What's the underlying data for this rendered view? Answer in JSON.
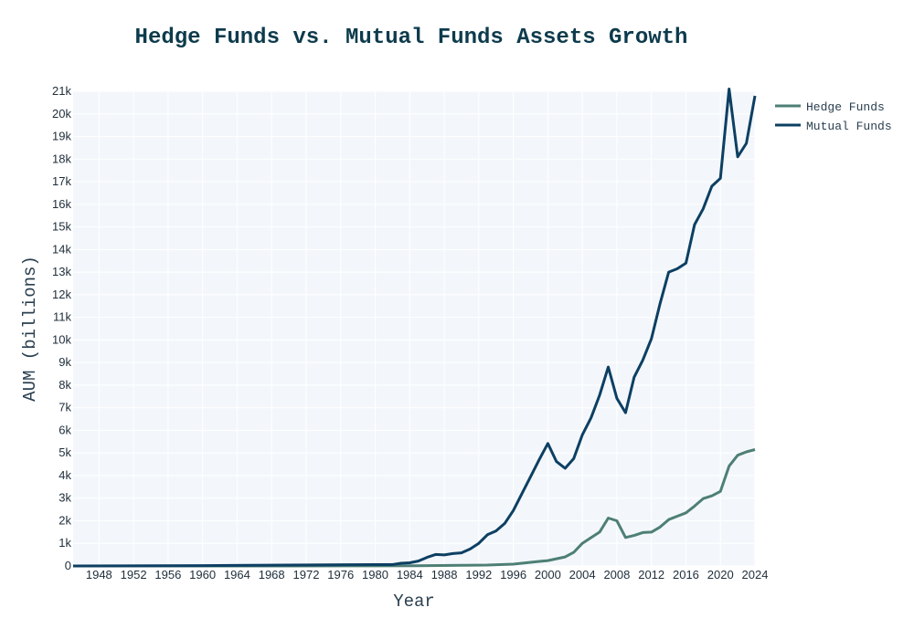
{
  "chart_data": {
    "type": "line",
    "title": "Hedge Funds vs. Mutual Funds Assets Growth",
    "xlabel": "Year",
    "ylabel": "AUM (billions)",
    "xlim": [
      1945,
      2024
    ],
    "ylim": [
      0,
      21000
    ],
    "grid": true,
    "legend_position": "top-right",
    "x_ticks": [
      1948,
      1952,
      1956,
      1960,
      1964,
      1968,
      1972,
      1976,
      1980,
      1984,
      1988,
      1992,
      1996,
      2000,
      2004,
      2008,
      2012,
      2016,
      2020,
      2024
    ],
    "y_ticks": [
      {
        "value": 0,
        "label": "0"
      },
      {
        "value": 1000,
        "label": "1k"
      },
      {
        "value": 2000,
        "label": "2k"
      },
      {
        "value": 3000,
        "label": "3k"
      },
      {
        "value": 4000,
        "label": "4k"
      },
      {
        "value": 5000,
        "label": "5k"
      },
      {
        "value": 6000,
        "label": "6k"
      },
      {
        "value": 7000,
        "label": "7k"
      },
      {
        "value": 8000,
        "label": "8k"
      },
      {
        "value": 9000,
        "label": "9k"
      },
      {
        "value": 10000,
        "label": "10k"
      },
      {
        "value": 11000,
        "label": "11k"
      },
      {
        "value": 12000,
        "label": "12k"
      },
      {
        "value": 13000,
        "label": "13k"
      },
      {
        "value": 14000,
        "label": "14k"
      },
      {
        "value": 15000,
        "label": "15k"
      },
      {
        "value": 16000,
        "label": "16k"
      },
      {
        "value": 17000,
        "label": "17k"
      },
      {
        "value": 18000,
        "label": "18k"
      },
      {
        "value": 19000,
        "label": "19k"
      },
      {
        "value": 20000,
        "label": "20k"
      },
      {
        "value": 21000,
        "label": "21k"
      }
    ],
    "series": [
      {
        "name": "Hedge Funds",
        "color": "#4e7f76",
        "points": [
          [
            1945,
            0
          ],
          [
            1970,
            1
          ],
          [
            1980,
            3
          ],
          [
            1985,
            10
          ],
          [
            1990,
            30
          ],
          [
            1993,
            40
          ],
          [
            1996,
            80
          ],
          [
            1997,
            120
          ],
          [
            1998,
            160
          ],
          [
            1999,
            200
          ],
          [
            2000,
            240
          ],
          [
            2001,
            320
          ],
          [
            2002,
            400
          ],
          [
            2003,
            600
          ],
          [
            2004,
            1000
          ],
          [
            2005,
            1250
          ],
          [
            2006,
            1500
          ],
          [
            2007,
            2120
          ],
          [
            2008,
            2000
          ],
          [
            2009,
            1260
          ],
          [
            2010,
            1350
          ],
          [
            2011,
            1480
          ],
          [
            2012,
            1500
          ],
          [
            2013,
            1720
          ],
          [
            2014,
            2050
          ],
          [
            2015,
            2200
          ],
          [
            2016,
            2350
          ],
          [
            2017,
            2650
          ],
          [
            2018,
            2980
          ],
          [
            2019,
            3100
          ],
          [
            2020,
            3300
          ],
          [
            2021,
            4420
          ],
          [
            2022,
            4900
          ],
          [
            2023,
            5050
          ],
          [
            2024,
            5150
          ]
        ]
      },
      {
        "name": "Mutual Funds",
        "color": "#0d3f63",
        "points": [
          [
            1945,
            0
          ],
          [
            1960,
            15
          ],
          [
            1970,
            40
          ],
          [
            1980,
            60
          ],
          [
            1981,
            60
          ],
          [
            1982,
            60
          ],
          [
            1983,
            120
          ],
          [
            1984,
            140
          ],
          [
            1985,
            220
          ],
          [
            1986,
            380
          ],
          [
            1987,
            510
          ],
          [
            1988,
            490
          ],
          [
            1989,
            550
          ],
          [
            1990,
            580
          ],
          [
            1991,
            750
          ],
          [
            1992,
            1000
          ],
          [
            1993,
            1380
          ],
          [
            1994,
            1550
          ],
          [
            1995,
            1880
          ],
          [
            1996,
            2450
          ],
          [
            1997,
            3200
          ],
          [
            1998,
            3950
          ],
          [
            1999,
            4700
          ],
          [
            2000,
            5420
          ],
          [
            2001,
            4620
          ],
          [
            2002,
            4320
          ],
          [
            2003,
            4750
          ],
          [
            2004,
            5800
          ],
          [
            2005,
            6550
          ],
          [
            2006,
            7550
          ],
          [
            2007,
            8800
          ],
          [
            2008,
            7420
          ],
          [
            2009,
            6780
          ],
          [
            2010,
            8350
          ],
          [
            2011,
            9100
          ],
          [
            2012,
            10050
          ],
          [
            2013,
            11600
          ],
          [
            2014,
            13000
          ],
          [
            2015,
            13150
          ],
          [
            2016,
            13400
          ],
          [
            2017,
            15100
          ],
          [
            2018,
            15800
          ],
          [
            2019,
            16800
          ],
          [
            2020,
            17150
          ],
          [
            2021,
            21100
          ],
          [
            2022,
            18100
          ],
          [
            2023,
            18700
          ],
          [
            2024,
            20800
          ]
        ]
      }
    ]
  }
}
